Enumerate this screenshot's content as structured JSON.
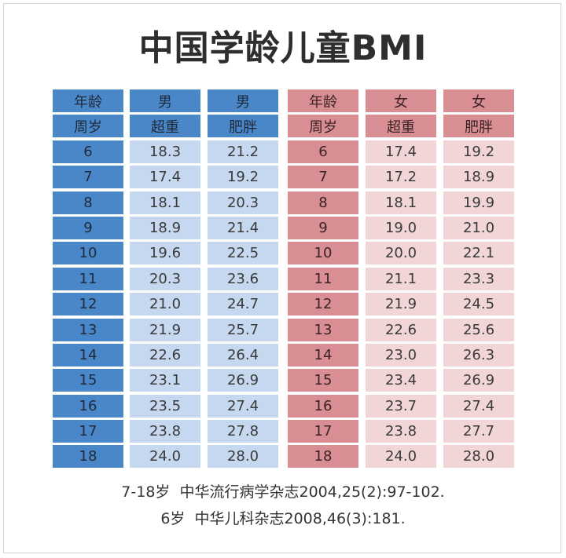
{
  "title": "中国学龄儿童BMI",
  "columns": [
    {
      "header1": "年龄",
      "header2": "周岁",
      "values": [
        "6",
        "7",
        "8",
        "9",
        "10",
        "11",
        "12",
        "13",
        "14",
        "15",
        "16",
        "17",
        "18"
      ]
    },
    {
      "header1": "男",
      "header2": "超重",
      "values": [
        "18.3",
        "17.4",
        "18.1",
        "18.9",
        "19.6",
        "20.3",
        "21.0",
        "21.9",
        "22.6",
        "23.1",
        "23.5",
        "23.8",
        "24.0"
      ]
    },
    {
      "header1": "男",
      "header2": "肥胖",
      "values": [
        "21.2",
        "19.2",
        "20.3",
        "21.4",
        "22.5",
        "23.6",
        "24.7",
        "25.7",
        "26.4",
        "26.9",
        "27.4",
        "27.8",
        "28.0"
      ]
    },
    {
      "header1": "年龄",
      "header2": "周岁",
      "values": [
        "6",
        "7",
        "8",
        "9",
        "10",
        "11",
        "12",
        "13",
        "14",
        "15",
        "16",
        "17",
        "18"
      ]
    },
    {
      "header1": "女",
      "header2": "超重",
      "values": [
        "17.4",
        "17.2",
        "18.1",
        "19.0",
        "20.0",
        "21.1",
        "21.9",
        "22.6",
        "23.0",
        "23.4",
        "23.7",
        "23.8",
        "24.0"
      ]
    },
    {
      "header1": "女",
      "header2": "肥胖",
      "values": [
        "19.2",
        "18.9",
        "19.9",
        "21.0",
        "22.1",
        "23.3",
        "24.5",
        "25.6",
        "26.3",
        "26.9",
        "27.4",
        "27.7",
        "28.0"
      ]
    }
  ],
  "notes": [
    "7-18岁  中华流行病学杂志2004,25(2):97-102.",
    "6岁  中华儿科杂志2008,46(3):181."
  ],
  "colors": {
    "male_header": "#4a87c9",
    "male_value": "#c5d8ef",
    "female_header": "#d98e93",
    "female_value": "#f2d6d7"
  }
}
